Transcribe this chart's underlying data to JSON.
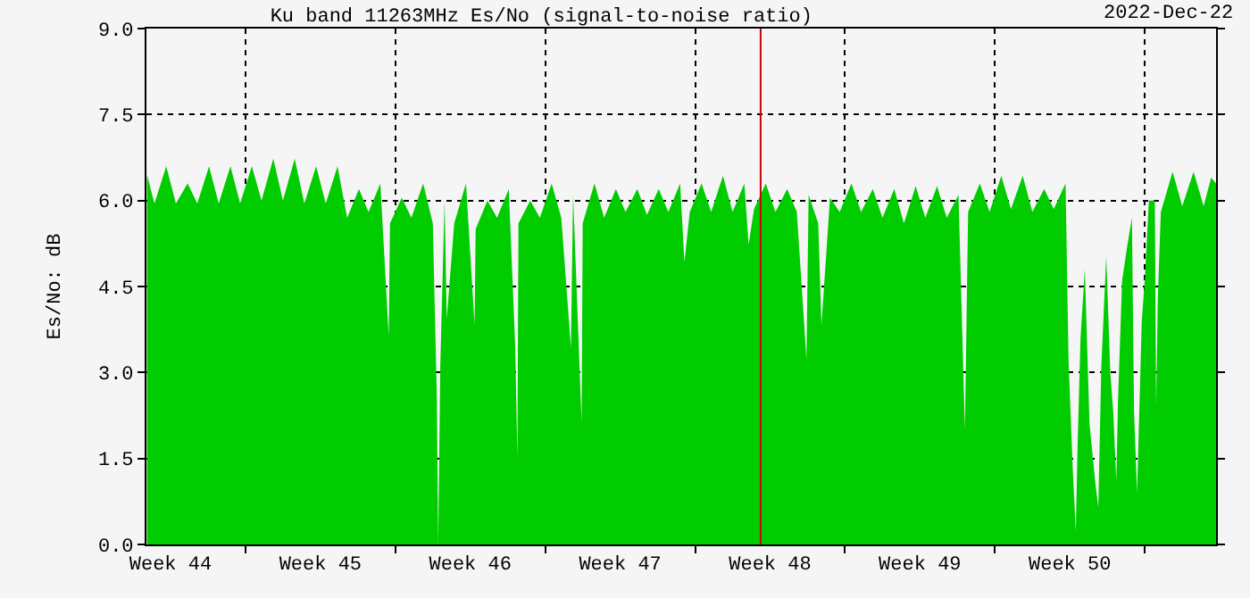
{
  "chart_data": {
    "type": "area",
    "title": "Ku band 11263MHz Es/No (signal-to-noise ratio)",
    "ylabel": "Es/No: dB",
    "annotations": [
      "2022-Dec-22"
    ],
    "x": [
      "2022-11-02T09:36",
      "2022-11-02T18:00",
      "2022-11-03T07:12",
      "2022-11-03T18:00",
      "2022-11-04T07:12",
      "2022-11-04T18:00",
      "2022-11-05T07:12",
      "2022-11-05T18:00",
      "2022-11-06T07:12",
      "2022-11-06T18:00",
      "2022-11-07T07:12",
      "2022-11-07T18:00",
      "2022-11-08T07:12",
      "2022-11-08T18:00",
      "2022-11-09T07:12",
      "2022-11-09T18:00",
      "2022-11-10T07:12",
      "2022-11-10T18:00",
      "2022-11-11T07:12",
      "2022-11-11T18:00",
      "2022-11-12T07:12",
      "2022-11-12T18:00",
      "2022-11-13T07:12",
      "2022-11-13T16:34",
      "2022-11-13T18:00",
      "2022-11-14T07:12",
      "2022-11-14T18:00",
      "2022-11-15T07:12",
      "2022-11-15T18:00",
      "2022-11-15T22:34",
      "2022-11-16T00:00",
      "2022-11-16T02:24",
      "2022-11-16T07:12",
      "2022-11-16T09:36",
      "2022-11-16T18:00",
      "2022-11-17T07:12",
      "2022-11-17T16:48",
      "2022-11-17T18:00",
      "2022-11-18T07:12",
      "2022-11-18T18:00",
      "2022-11-19T07:12",
      "2022-11-19T14:24",
      "2022-11-19T16:48",
      "2022-11-19T18:00",
      "2022-11-20T07:12",
      "2022-11-20T18:00",
      "2022-11-21T07:12",
      "2022-11-21T18:00",
      "2022-11-22T04:48",
      "2022-11-22T07:12",
      "2022-11-22T16:48",
      "2022-11-22T18:00",
      "2022-11-23T07:12",
      "2022-11-23T18:00",
      "2022-11-24T07:12",
      "2022-11-24T18:00",
      "2022-11-25T07:12",
      "2022-11-25T18:00",
      "2022-11-26T07:12",
      "2022-11-26T18:00",
      "2022-11-27T07:12",
      "2022-11-27T12:00",
      "2022-11-27T18:00",
      "2022-11-28T07:12",
      "2022-11-28T18:00",
      "2022-11-29T07:12",
      "2022-11-29T18:00",
      "2022-11-30T07:12",
      "2022-11-30T12:00",
      "2022-11-30T18:00",
      "2022-12-01T07:12",
      "2022-12-01T18:00",
      "2022-12-02T07:12",
      "2022-12-02T18:00",
      "2022-12-03T04:48",
      "2022-12-03T07:12",
      "2022-12-03T18:00",
      "2022-12-03T21:36",
      "2022-12-04T07:12",
      "2022-12-04T18:00",
      "2022-12-05T07:12",
      "2022-12-05T18:00",
      "2022-12-06T07:12",
      "2022-12-06T18:00",
      "2022-12-07T07:12",
      "2022-12-07T18:00",
      "2022-12-08T07:12",
      "2022-12-08T18:00",
      "2022-12-09T07:12",
      "2022-12-09T18:00",
      "2022-12-10T07:12",
      "2022-12-10T14:24",
      "2022-12-10T18:00",
      "2022-12-11T07:12",
      "2022-12-11T18:00",
      "2022-12-12T07:12",
      "2022-12-12T18:00",
      "2022-12-13T07:12",
      "2022-12-13T18:00",
      "2022-12-14T07:12",
      "2022-12-14T18:00",
      "2022-12-15T07:12",
      "2022-12-15T10:34",
      "2022-12-15T15:22",
      "2022-12-15T18:43",
      "2022-12-15T20:38",
      "2022-12-16T00:00",
      "2022-12-16T04:48",
      "2022-12-16T10:05",
      "2022-12-16T16:34",
      "2022-12-16T19:55",
      "2022-12-16T23:17",
      "2022-12-17T04:48",
      "2022-12-17T09:22",
      "2022-12-17T12:43",
      "2022-12-17T16:05",
      "2022-12-17T18:00",
      "2022-12-17T22:34",
      "2022-12-18T04:48",
      "2022-12-18T09:36",
      "2022-12-18T12:00",
      "2022-12-18T15:22",
      "2022-12-18T17:17",
      "2022-12-18T20:38",
      "2022-12-19T00:00",
      "2022-12-19T04:34",
      "2022-12-19T11:17",
      "2022-12-19T12:43",
      "2022-12-19T14:38",
      "2022-12-19T18:00",
      "2022-12-20T07:12",
      "2022-12-20T18:00",
      "2022-12-21T06:43",
      "2022-12-21T18:00",
      "2022-12-22T02:24",
      "2022-12-22T07:55"
    ],
    "series": [
      {
        "color": "#00cc00",
        "values": [
          6.45,
          5.95,
          6.6,
          5.95,
          6.3,
          5.95,
          6.6,
          5.95,
          6.6,
          5.95,
          6.6,
          6.0,
          6.73,
          6.0,
          6.73,
          5.95,
          6.6,
          5.95,
          6.6,
          5.7,
          6.2,
          5.8,
          6.3,
          3.63,
          5.6,
          6.05,
          5.7,
          6.3,
          5.6,
          2.53,
          0.0,
          3.13,
          6.0,
          3.93,
          5.6,
          6.3,
          3.83,
          5.5,
          6.0,
          5.7,
          6.2,
          3.43,
          1.5,
          5.6,
          6.0,
          5.7,
          6.3,
          5.7,
          3.43,
          6.1,
          2.13,
          5.6,
          6.3,
          5.7,
          6.2,
          5.8,
          6.2,
          5.75,
          6.2,
          5.8,
          6.3,
          4.93,
          5.8,
          6.3,
          5.8,
          6.43,
          5.8,
          6.3,
          5.23,
          5.85,
          6.3,
          5.8,
          6.2,
          5.8,
          3.23,
          6.1,
          5.6,
          3.83,
          6.05,
          5.8,
          6.3,
          5.8,
          6.2,
          5.7,
          6.2,
          5.6,
          6.25,
          5.7,
          6.25,
          5.7,
          6.1,
          2.0,
          5.8,
          6.3,
          5.8,
          6.43,
          5.85,
          6.43,
          5.8,
          6.2,
          5.85,
          6.3,
          3.2,
          1.28,
          0.23,
          1.7,
          3.6,
          4.8,
          2.1,
          1.08,
          0.65,
          3.1,
          5.03,
          3.0,
          2.3,
          1.1,
          2.5,
          4.6,
          5.25,
          5.7,
          2.3,
          0.9,
          2.0,
          3.9,
          4.6,
          6.0,
          6.0,
          2.4,
          4.3,
          5.8,
          6.5,
          5.9,
          6.5,
          5.9,
          6.4,
          6.3
        ]
      }
    ],
    "xlim": [
      "2022-11-02T09:00",
      "2022-12-22T07:55"
    ],
    "xticks": [
      {
        "value": "2022-11-03T12:00",
        "label": "Week 44"
      },
      {
        "value": "2022-11-07",
        "label": null
      },
      {
        "value": "2022-11-10T12:00",
        "label": "Week 45"
      },
      {
        "value": "2022-11-14",
        "label": null
      },
      {
        "value": "2022-11-17T12:00",
        "label": "Week 46"
      },
      {
        "value": "2022-11-21",
        "label": null
      },
      {
        "value": "2022-11-24T12:00",
        "label": "Week 47"
      },
      {
        "value": "2022-11-28",
        "label": null
      },
      {
        "value": "2022-12-01T12:00",
        "label": "Week 48"
      },
      {
        "value": "2022-12-05",
        "label": null
      },
      {
        "value": "2022-12-08T12:00",
        "label": "Week 49"
      },
      {
        "value": "2022-12-12",
        "label": null
      },
      {
        "value": "2022-12-15T12:00",
        "label": "Week 50"
      },
      {
        "value": "2022-12-19",
        "label": null
      }
    ],
    "ylim": [
      0,
      9
    ],
    "yticks": [
      {
        "value": 0,
        "label": "0.0"
      },
      {
        "value": 1.5,
        "label": "1.5"
      },
      {
        "value": 3,
        "label": "3.0"
      },
      {
        "value": 4.5,
        "label": "4.5"
      },
      {
        "value": 6,
        "label": "6.0"
      },
      {
        "value": 7.5,
        "label": "7.5"
      },
      {
        "value": 9,
        "label": "9.0"
      }
    ],
    "ref_lines": [
      {
        "axis": "x",
        "value": "2022-12-01T01:26",
        "color": "#cc0000"
      }
    ],
    "grid": true
  }
}
